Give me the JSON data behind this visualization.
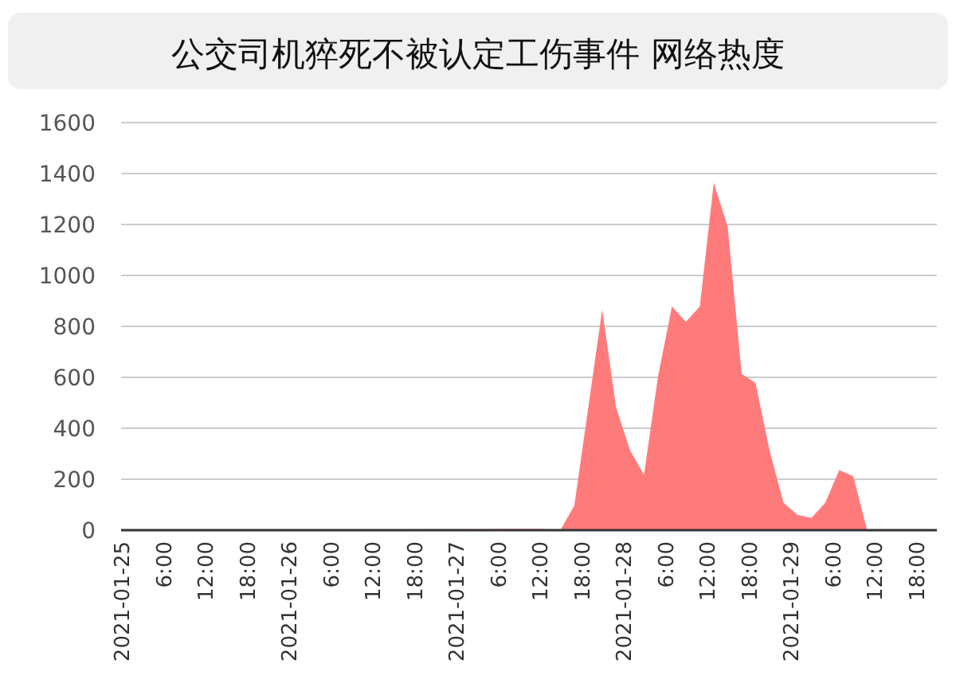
{
  "chart_data": {
    "type": "area",
    "title": "公交司机猝死不被认定工伤事件 网络热度",
    "x": [
      "2021-01-25T00:00",
      "2021-01-27T12:00",
      "2021-01-27T15:00",
      "2021-01-27T17:00",
      "2021-01-27T21:00",
      "2021-01-27T23:00",
      "2021-01-28T01:00",
      "2021-01-28T03:00",
      "2021-01-28T05:00",
      "2021-01-28T07:00",
      "2021-01-28T09:00",
      "2021-01-28T11:00",
      "2021-01-28T13:00",
      "2021-01-28T15:00",
      "2021-01-28T17:00",
      "2021-01-28T19:00",
      "2021-01-28T21:00",
      "2021-01-28T23:00",
      "2021-01-29T01:00",
      "2021-01-29T03:00",
      "2021-01-29T05:00",
      "2021-01-29T07:00",
      "2021-01-29T09:00",
      "2021-01-29T11:00",
      "2021-01-29T21:00"
    ],
    "series": [
      {
        "color": "#ff7b7b",
        "values": [
          0,
          5,
          0,
          96,
          866,
          481,
          313,
          217,
          602,
          878,
          818,
          878,
          1364,
          1191,
          614,
          577,
          313,
          108,
          60,
          48,
          108,
          236,
          212,
          0,
          0
        ]
      }
    ],
    "xlim": [
      "2021-01-25T00:00",
      "2021-01-29T21:00"
    ],
    "xticks": [
      {
        "value": "2021-01-25T00:00",
        "label": "2021-01-25"
      },
      {
        "value": "2021-01-25T06:00",
        "label": "6:00"
      },
      {
        "value": "2021-01-25T12:00",
        "label": "12:00"
      },
      {
        "value": "2021-01-25T18:00",
        "label": "18:00"
      },
      {
        "value": "2021-01-26T00:00",
        "label": "2021-01-26"
      },
      {
        "value": "2021-01-26T06:00",
        "label": "6:00"
      },
      {
        "value": "2021-01-26T12:00",
        "label": "12:00"
      },
      {
        "value": "2021-01-26T18:00",
        "label": "18:00"
      },
      {
        "value": "2021-01-27T00:00",
        "label": "2021-01-27"
      },
      {
        "value": "2021-01-27T06:00",
        "label": "6:00"
      },
      {
        "value": "2021-01-27T12:00",
        "label": "12:00"
      },
      {
        "value": "2021-01-27T18:00",
        "label": "18:00"
      },
      {
        "value": "2021-01-28T00:00",
        "label": "2021-01-28"
      },
      {
        "value": "2021-01-28T06:00",
        "label": "6:00"
      },
      {
        "value": "2021-01-28T12:00",
        "label": "12:00"
      },
      {
        "value": "2021-01-28T18:00",
        "label": "18:00"
      },
      {
        "value": "2021-01-29T00:00",
        "label": "2021-01-29"
      },
      {
        "value": "2021-01-29T06:00",
        "label": "6:00"
      },
      {
        "value": "2021-01-29T12:00",
        "label": "12:00"
      },
      {
        "value": "2021-01-29T18:00",
        "label": "18:00"
      }
    ],
    "ylim": [
      0,
      1600
    ],
    "yticks": [
      0,
      200,
      400,
      600,
      800,
      1000,
      1200,
      1400,
      1600
    ],
    "grid": "y"
  }
}
